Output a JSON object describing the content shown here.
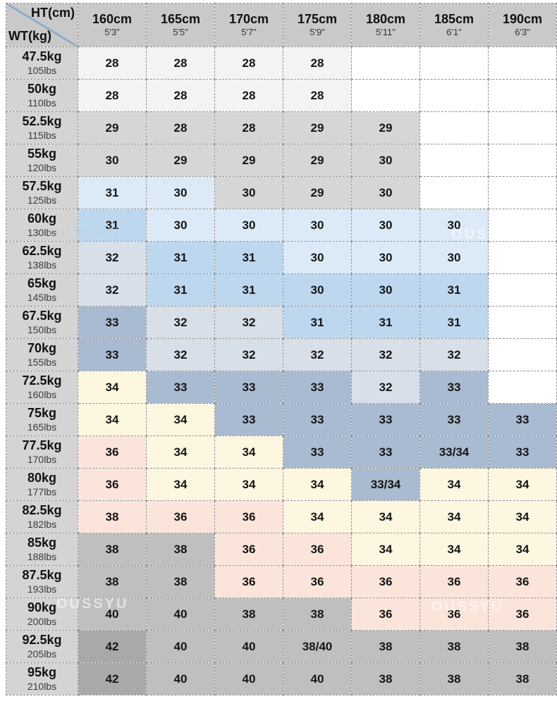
{
  "watermark": {
    "text": "OUSSYU"
  },
  "table": {
    "corner": {
      "top_label": "HT(cm)",
      "bottom_label": "WT(kg)"
    },
    "columns": [
      {
        "cm": "160cm",
        "ftin": "5'3\""
      },
      {
        "cm": "165cm",
        "ftin": "5'5\""
      },
      {
        "cm": "170cm",
        "ftin": "5'7\""
      },
      {
        "cm": "175cm",
        "ftin": "5'9\""
      },
      {
        "cm": "180cm",
        "ftin": "5'11\""
      },
      {
        "cm": "185cm",
        "ftin": "6'1\""
      },
      {
        "cm": "190cm",
        "ftin": "6'3\""
      }
    ],
    "colors": {
      "w": "#ffffff",
      "vl": "#f3f3f3",
      "g": "#d6d6d6",
      "lb": "#dceaf8",
      "mb": "#bdd7ef",
      "gb": "#d7dfe9",
      "sl": "#a9bbd0",
      "cr": "#fdf6e1",
      "pk": "#fbe5da",
      "mg": "#bfbfbf",
      "dg": "#a9a9a9"
    },
    "rows": [
      {
        "kg": "47.5kg",
        "lbs": "105lbs",
        "cells": [
          {
            "v": "28",
            "c": "vl"
          },
          {
            "v": "28",
            "c": "vl"
          },
          {
            "v": "28",
            "c": "vl"
          },
          {
            "v": "28",
            "c": "vl"
          },
          {
            "v": "",
            "c": "w"
          },
          {
            "v": "",
            "c": "w"
          },
          {
            "v": "",
            "c": "w"
          }
        ]
      },
      {
        "kg": "50kg",
        "lbs": "110lbs",
        "cells": [
          {
            "v": "28",
            "c": "vl"
          },
          {
            "v": "28",
            "c": "vl"
          },
          {
            "v": "28",
            "c": "vl"
          },
          {
            "v": "28",
            "c": "vl"
          },
          {
            "v": "",
            "c": "w"
          },
          {
            "v": "",
            "c": "w"
          },
          {
            "v": "",
            "c": "w"
          }
        ]
      },
      {
        "kg": "52.5kg",
        "lbs": "115lbs",
        "cells": [
          {
            "v": "29",
            "c": "g"
          },
          {
            "v": "28",
            "c": "g"
          },
          {
            "v": "28",
            "c": "g"
          },
          {
            "v": "29",
            "c": "g"
          },
          {
            "v": "29",
            "c": "g"
          },
          {
            "v": "",
            "c": "w"
          },
          {
            "v": "",
            "c": "w"
          }
        ]
      },
      {
        "kg": "55kg",
        "lbs": "120lbs",
        "cells": [
          {
            "v": "30",
            "c": "g"
          },
          {
            "v": "29",
            "c": "g"
          },
          {
            "v": "29",
            "c": "g"
          },
          {
            "v": "29",
            "c": "g"
          },
          {
            "v": "30",
            "c": "g"
          },
          {
            "v": "",
            "c": "w"
          },
          {
            "v": "",
            "c": "w"
          }
        ]
      },
      {
        "kg": "57.5kg",
        "lbs": "125lbs",
        "cells": [
          {
            "v": "31",
            "c": "lb"
          },
          {
            "v": "30",
            "c": "lb"
          },
          {
            "v": "30",
            "c": "g"
          },
          {
            "v": "29",
            "c": "g"
          },
          {
            "v": "30",
            "c": "g"
          },
          {
            "v": "",
            "c": "w"
          },
          {
            "v": "",
            "c": "w"
          }
        ]
      },
      {
        "kg": "60kg",
        "lbs": "130lbs",
        "cells": [
          {
            "v": "31",
            "c": "mb"
          },
          {
            "v": "30",
            "c": "lb"
          },
          {
            "v": "30",
            "c": "lb"
          },
          {
            "v": "30",
            "c": "lb"
          },
          {
            "v": "30",
            "c": "lb"
          },
          {
            "v": "30",
            "c": "lb"
          },
          {
            "v": "",
            "c": "w"
          }
        ]
      },
      {
        "kg": "62.5kg",
        "lbs": "138lbs",
        "cells": [
          {
            "v": "32",
            "c": "gb"
          },
          {
            "v": "31",
            "c": "mb"
          },
          {
            "v": "31",
            "c": "mb"
          },
          {
            "v": "30",
            "c": "lb"
          },
          {
            "v": "30",
            "c": "lb"
          },
          {
            "v": "30",
            "c": "lb"
          },
          {
            "v": "",
            "c": "w"
          }
        ]
      },
      {
        "kg": "65kg",
        "lbs": "145lbs",
        "cells": [
          {
            "v": "32",
            "c": "gb"
          },
          {
            "v": "31",
            "c": "mb"
          },
          {
            "v": "31",
            "c": "mb"
          },
          {
            "v": "30",
            "c": "mb"
          },
          {
            "v": "30",
            "c": "mb"
          },
          {
            "v": "31",
            "c": "mb"
          },
          {
            "v": "",
            "c": "w"
          }
        ]
      },
      {
        "kg": "67.5kg",
        "lbs": "150lbs",
        "cells": [
          {
            "v": "33",
            "c": "sl"
          },
          {
            "v": "32",
            "c": "gb"
          },
          {
            "v": "32",
            "c": "gb"
          },
          {
            "v": "31",
            "c": "mb"
          },
          {
            "v": "31",
            "c": "mb"
          },
          {
            "v": "31",
            "c": "mb"
          },
          {
            "v": "",
            "c": "w"
          }
        ]
      },
      {
        "kg": "70kg",
        "lbs": "155lbs",
        "cells": [
          {
            "v": "33",
            "c": "sl"
          },
          {
            "v": "32",
            "c": "gb"
          },
          {
            "v": "32",
            "c": "gb"
          },
          {
            "v": "32",
            "c": "gb"
          },
          {
            "v": "32",
            "c": "gb"
          },
          {
            "v": "32",
            "c": "gb"
          },
          {
            "v": "",
            "c": "w"
          }
        ]
      },
      {
        "kg": "72.5kg",
        "lbs": "160lbs",
        "cells": [
          {
            "v": "34",
            "c": "cr"
          },
          {
            "v": "33",
            "c": "sl"
          },
          {
            "v": "33",
            "c": "sl"
          },
          {
            "v": "33",
            "c": "sl"
          },
          {
            "v": "32",
            "c": "gb"
          },
          {
            "v": "33",
            "c": "sl"
          },
          {
            "v": "",
            "c": "w"
          }
        ]
      },
      {
        "kg": "75kg",
        "lbs": "165lbs",
        "cells": [
          {
            "v": "34",
            "c": "cr"
          },
          {
            "v": "34",
            "c": "cr"
          },
          {
            "v": "33",
            "c": "sl"
          },
          {
            "v": "33",
            "c": "sl"
          },
          {
            "v": "33",
            "c": "sl"
          },
          {
            "v": "33",
            "c": "sl"
          },
          {
            "v": "33",
            "c": "sl"
          }
        ]
      },
      {
        "kg": "77.5kg",
        "lbs": "170lbs",
        "cells": [
          {
            "v": "36",
            "c": "pk"
          },
          {
            "v": "34",
            "c": "cr"
          },
          {
            "v": "34",
            "c": "cr"
          },
          {
            "v": "33",
            "c": "sl"
          },
          {
            "v": "33",
            "c": "sl"
          },
          {
            "v": "33/34",
            "c": "sl"
          },
          {
            "v": "33",
            "c": "sl"
          }
        ]
      },
      {
        "kg": "80kg",
        "lbs": "177lbs",
        "cells": [
          {
            "v": "36",
            "c": "pk"
          },
          {
            "v": "34",
            "c": "cr"
          },
          {
            "v": "34",
            "c": "cr"
          },
          {
            "v": "34",
            "c": "cr"
          },
          {
            "v": "33/34",
            "c": "sl"
          },
          {
            "v": "34",
            "c": "cr"
          },
          {
            "v": "34",
            "c": "cr"
          }
        ]
      },
      {
        "kg": "82.5kg",
        "lbs": "182lbs",
        "cells": [
          {
            "v": "38",
            "c": "pk"
          },
          {
            "v": "36",
            "c": "pk"
          },
          {
            "v": "36",
            "c": "pk"
          },
          {
            "v": "34",
            "c": "cr"
          },
          {
            "v": "34",
            "c": "cr"
          },
          {
            "v": "34",
            "c": "cr"
          },
          {
            "v": "34",
            "c": "cr"
          }
        ]
      },
      {
        "kg": "85kg",
        "lbs": "188lbs",
        "cells": [
          {
            "v": "38",
            "c": "mg"
          },
          {
            "v": "38",
            "c": "mg"
          },
          {
            "v": "36",
            "c": "pk"
          },
          {
            "v": "36",
            "c": "pk"
          },
          {
            "v": "34",
            "c": "cr"
          },
          {
            "v": "34",
            "c": "cr"
          },
          {
            "v": "34",
            "c": "cr"
          }
        ]
      },
      {
        "kg": "87.5kg",
        "lbs": "193lbs",
        "cells": [
          {
            "v": "38",
            "c": "mg"
          },
          {
            "v": "38",
            "c": "mg"
          },
          {
            "v": "36",
            "c": "pk"
          },
          {
            "v": "36",
            "c": "pk"
          },
          {
            "v": "36",
            "c": "pk"
          },
          {
            "v": "36",
            "c": "pk"
          },
          {
            "v": "36",
            "c": "pk"
          }
        ]
      },
      {
        "kg": "90kg",
        "lbs": "200lbs",
        "cells": [
          {
            "v": "40",
            "c": "mg"
          },
          {
            "v": "40",
            "c": "mg"
          },
          {
            "v": "38",
            "c": "mg"
          },
          {
            "v": "38",
            "c": "mg"
          },
          {
            "v": "36",
            "c": "pk"
          },
          {
            "v": "36",
            "c": "pk"
          },
          {
            "v": "36",
            "c": "pk"
          }
        ]
      },
      {
        "kg": "92.5kg",
        "lbs": "205lbs",
        "cells": [
          {
            "v": "42",
            "c": "dg"
          },
          {
            "v": "40",
            "c": "mg"
          },
          {
            "v": "40",
            "c": "mg"
          },
          {
            "v": "38/40",
            "c": "mg"
          },
          {
            "v": "38",
            "c": "mg"
          },
          {
            "v": "38",
            "c": "mg"
          },
          {
            "v": "38",
            "c": "mg"
          }
        ]
      },
      {
        "kg": "95kg",
        "lbs": "210lbs",
        "cells": [
          {
            "v": "42",
            "c": "dg"
          },
          {
            "v": "40",
            "c": "mg"
          },
          {
            "v": "40",
            "c": "mg"
          },
          {
            "v": "40",
            "c": "mg"
          },
          {
            "v": "38",
            "c": "mg"
          },
          {
            "v": "38",
            "c": "mg"
          },
          {
            "v": "38",
            "c": "mg"
          }
        ]
      }
    ]
  }
}
